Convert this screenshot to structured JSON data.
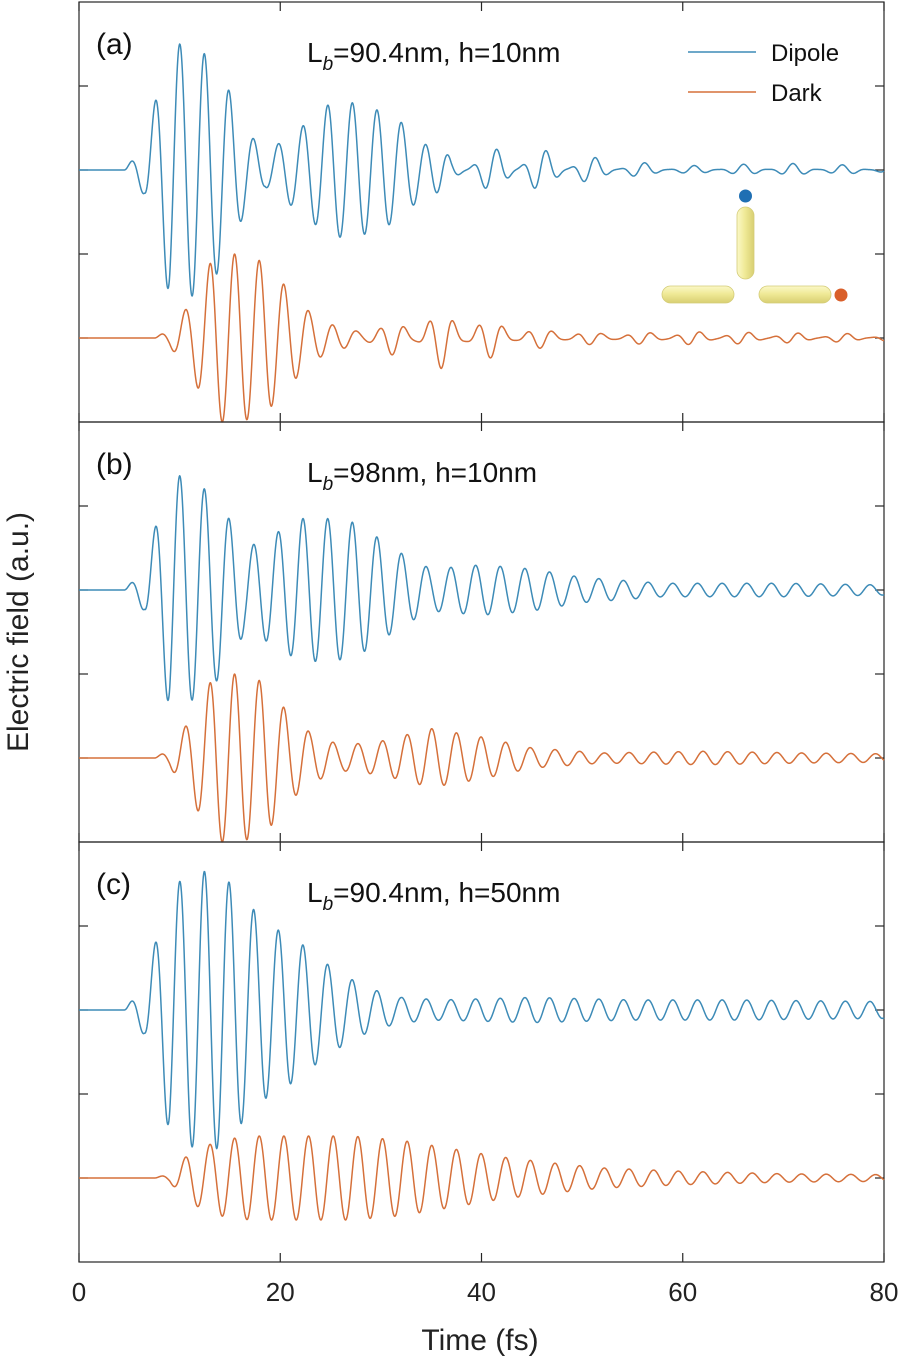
{
  "chart_data": {
    "type": "line",
    "xlabel": "Time (fs)",
    "ylabel": "Electric field (a.u.)",
    "xlim": [
      0,
      80
    ],
    "xticks": [
      "0",
      "20",
      "40",
      "60",
      "80"
    ],
    "legend": {
      "placement": "top-right",
      "entries": [
        "Dipole",
        "Dark"
      ]
    },
    "colors": {
      "dipole": "#3d8bb7",
      "dark": "#d5703a",
      "frame": "#262626",
      "inset_dot_top": "#1f6fb3",
      "inset_dot_right": "#d95f2a",
      "inset_rod": "#f1ec9c"
    },
    "panels": [
      {
        "label": "(a)",
        "title_main": "L",
        "title_sub": "b",
        "title_rest": "=90.4nm, h=10nm",
        "series": [
          {
            "name": "Dipole",
            "t_start": 4.5,
            "main_env": [
              [
                4.5,
                0
              ],
              [
                6.5,
                0.3
              ],
              [
                9,
                1.5
              ],
              [
                11.5,
                1.5
              ],
              [
                14,
                1.2
              ],
              [
                16.5,
                0.5
              ],
              [
                18.5,
                0.2
              ],
              [
                22,
                0.5
              ],
              [
                25,
                0.8
              ],
              [
                27.5,
                0.8
              ],
              [
                30,
                0.7
              ],
              [
                32.5,
                0.5
              ],
              [
                35,
                0.2
              ],
              [
                37,
                0.0
              ],
              [
                80,
                0
              ]
            ],
            "beat_env": [
              [
                30,
                0
              ],
              [
                35,
                0.15
              ],
              [
                43,
                0.3
              ],
              [
                48,
                0.22
              ],
              [
                53,
                0.12
              ],
              [
                60,
                0.05
              ],
              [
                70,
                0.08
              ],
              [
                80,
                0.05
              ]
            ]
          },
          {
            "name": "Dark",
            "t_start": 7.5,
            "main_env": [
              [
                7.5,
                0
              ],
              [
                9,
                0.1
              ],
              [
                11,
                0.4
              ],
              [
                13.5,
                1.0
              ],
              [
                16,
                1.0
              ],
              [
                18.5,
                0.9
              ],
              [
                21,
                0.55
              ],
              [
                23,
                0.3
              ],
              [
                26,
                0.08
              ],
              [
                30,
                0.02
              ],
              [
                80,
                0
              ]
            ],
            "beat_env": [
              [
                24,
                0
              ],
              [
                30,
                0.15
              ],
              [
                36,
                0.35
              ],
              [
                40,
                0.25
              ],
              [
                45,
                0.12
              ],
              [
                52,
                0.06
              ],
              [
                62,
                0.08
              ],
              [
                72,
                0.06
              ],
              [
                80,
                0.05
              ]
            ]
          }
        ]
      },
      {
        "label": "(b)",
        "title_main": "L",
        "title_sub": "b",
        "title_rest": "=98nm, h=10nm",
        "series": [
          {
            "name": "Dipole",
            "t_start": 4.5,
            "main_env": [
              [
                4.5,
                0
              ],
              [
                6.5,
                0.25
              ],
              [
                9,
                1.4
              ],
              [
                11.5,
                1.3
              ],
              [
                14,
                1.05
              ],
              [
                16.5,
                0.5
              ],
              [
                18.5,
                0.6
              ],
              [
                22,
                0.85
              ],
              [
                25,
                0.85
              ],
              [
                27.5,
                0.8
              ],
              [
                30,
                0.6
              ],
              [
                32.5,
                0.4
              ],
              [
                35,
                0.25
              ],
              [
                40,
                0.3
              ],
              [
                45,
                0.25
              ],
              [
                50,
                0.15
              ],
              [
                58,
                0.08
              ],
              [
                70,
                0.08
              ],
              [
                80,
                0.06
              ]
            ],
            "beat_env": [
              [
                0,
                0
              ],
              [
                80,
                0
              ]
            ]
          },
          {
            "name": "Dark",
            "t_start": 7.5,
            "main_env": [
              [
                7.5,
                0
              ],
              [
                9,
                0.1
              ],
              [
                11,
                0.45
              ],
              [
                13.5,
                1.0
              ],
              [
                16,
                1.0
              ],
              [
                18.5,
                0.9
              ],
              [
                21,
                0.5
              ],
              [
                23,
                0.3
              ],
              [
                26,
                0.15
              ],
              [
                30,
                0.2
              ],
              [
                35,
                0.35
              ],
              [
                40,
                0.25
              ],
              [
                45,
                0.12
              ],
              [
                52,
                0.06
              ],
              [
                62,
                0.08
              ],
              [
                72,
                0.06
              ],
              [
                80,
                0.05
              ]
            ],
            "beat_env": [
              [
                0,
                0
              ],
              [
                80,
                0
              ]
            ]
          }
        ]
      },
      {
        "label": "(c)",
        "title_main": "L",
        "title_sub": "b",
        "title_rest": "=90.4nm, h=50nm",
        "series": [
          {
            "name": "Dipole",
            "t_start": 4.5,
            "main_env": [
              [
                4.5,
                0
              ],
              [
                6.5,
                0.3
              ],
              [
                9,
                1.45
              ],
              [
                11.5,
                1.65
              ],
              [
                14,
                1.65
              ],
              [
                16.5,
                1.3
              ],
              [
                19,
                1.0
              ],
              [
                21.5,
                0.85
              ],
              [
                24,
                0.6
              ],
              [
                26.5,
                0.4
              ],
              [
                29,
                0.25
              ],
              [
                32,
                0.15
              ],
              [
                36,
                0.12
              ],
              [
                45,
                0.15
              ],
              [
                55,
                0.12
              ],
              [
                65,
                0.12
              ],
              [
                80,
                0.1
              ]
            ],
            "beat_env": [
              [
                0,
                0
              ],
              [
                80,
                0
              ]
            ]
          },
          {
            "name": "Dark",
            "t_start": 7.5,
            "main_env": [
              [
                7.5,
                0
              ],
              [
                9,
                0.05
              ],
              [
                11,
                0.3
              ],
              [
                14,
                0.45
              ],
              [
                17,
                0.5
              ],
              [
                22,
                0.5
              ],
              [
                27,
                0.5
              ],
              [
                32,
                0.45
              ],
              [
                37,
                0.35
              ],
              [
                42,
                0.25
              ],
              [
                47,
                0.18
              ],
              [
                52,
                0.12
              ],
              [
                60,
                0.08
              ],
              [
                70,
                0.05
              ],
              [
                80,
                0.04
              ]
            ],
            "beat_env": [
              [
                0,
                0
              ],
              [
                80,
                0
              ]
            ]
          }
        ]
      }
    ]
  }
}
